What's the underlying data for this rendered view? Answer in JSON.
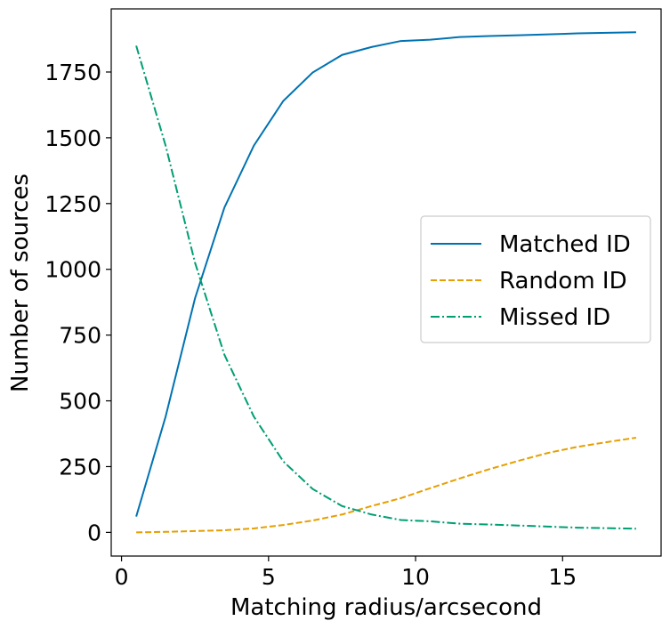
{
  "chart_data": {
    "type": "line",
    "title": "",
    "xlabel": "Matching radius/arcsecond",
    "ylabel": "Number of sources",
    "xlim": [
      -0.35,
      18.35
    ],
    "ylim": [
      -90,
      1990
    ],
    "xticks": [
      0,
      5,
      10,
      15
    ],
    "yticks": [
      0,
      250,
      500,
      750,
      1000,
      1250,
      1500,
      1750
    ],
    "grid": false,
    "legend_position": "center-right",
    "x": [
      0.5,
      1.5,
      2.5,
      3.5,
      4.5,
      5.5,
      6.5,
      7.5,
      8.5,
      9.5,
      10.5,
      11.5,
      12.5,
      13.5,
      14.5,
      15.5,
      16.5,
      17.5
    ],
    "series": [
      {
        "name": "Matched ID",
        "color": "#0072b2",
        "style": "solid",
        "values": [
          60,
          440,
          890,
          1235,
          1470,
          1640,
          1748,
          1815,
          1845,
          1868,
          1873,
          1883,
          1887,
          1890,
          1893,
          1897,
          1899,
          1901
        ]
      },
      {
        "name": "Random ID",
        "color": "#e69f00",
        "style": "dashed",
        "values": [
          0,
          2,
          5,
          8,
          15,
          28,
          45,
          68,
          100,
          130,
          168,
          205,
          240,
          272,
          302,
          325,
          343,
          360
        ]
      },
      {
        "name": "Missed ID",
        "color": "#009e73",
        "style": "dashdot",
        "values": [
          1850,
          1470,
          1025,
          675,
          440,
          270,
          165,
          100,
          68,
          47,
          42,
          33,
          30,
          26,
          22,
          18,
          16,
          14
        ]
      }
    ]
  }
}
